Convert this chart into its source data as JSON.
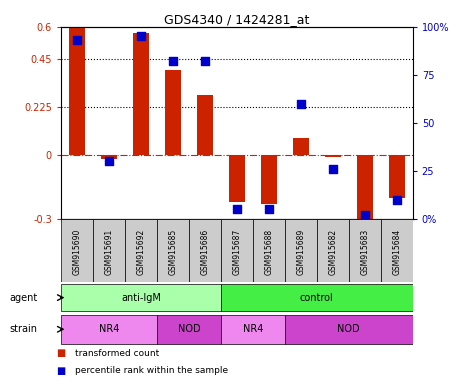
{
  "title": "GDS4340 / 1424281_at",
  "samples": [
    "GSM915690",
    "GSM915691",
    "GSM915692",
    "GSM915685",
    "GSM915686",
    "GSM915687",
    "GSM915688",
    "GSM915689",
    "GSM915682",
    "GSM915683",
    "GSM915684"
  ],
  "transformed_count": [
    0.6,
    -0.02,
    0.57,
    0.4,
    0.28,
    -0.22,
    -0.23,
    0.08,
    -0.01,
    -0.3,
    -0.2
  ],
  "percentile_rank": [
    93,
    30,
    95,
    82,
    82,
    5,
    5,
    60,
    26,
    2,
    10
  ],
  "bar_color": "#cc2200",
  "dot_color": "#0000cc",
  "ylim_left": [
    -0.3,
    0.6
  ],
  "ylim_right": [
    0,
    100
  ],
  "yticks_left": [
    -0.3,
    0,
    0.225,
    0.45,
    0.6
  ],
  "yticks_right": [
    0,
    25,
    50,
    75,
    100
  ],
  "ytick_labels_left": [
    "-0.3",
    "0",
    "0.225",
    "0.45",
    "0.6"
  ],
  "ytick_labels_right": [
    "0%",
    "25",
    "50",
    "75",
    "100%"
  ],
  "hlines": [
    0.225,
    0.45
  ],
  "zero_line_color": "#cc2200",
  "hline_color": "#000000",
  "agent_groups": [
    {
      "label": "anti-IgM",
      "start": 0,
      "end": 5,
      "color": "#aaffaa"
    },
    {
      "label": "control",
      "start": 5,
      "end": 11,
      "color": "#44ee44"
    }
  ],
  "strain_groups": [
    {
      "label": "NR4",
      "start": 0,
      "end": 3,
      "color": "#ee88ee"
    },
    {
      "label": "NOD",
      "start": 3,
      "end": 5,
      "color": "#cc44cc"
    },
    {
      "label": "NR4",
      "start": 5,
      "end": 7,
      "color": "#ee88ee"
    },
    {
      "label": "NOD",
      "start": 7,
      "end": 11,
      "color": "#cc44cc"
    }
  ],
  "legend_red_label": "transformed count",
  "legend_blue_label": "percentile rank within the sample",
  "bar_width": 0.5,
  "dot_size": 40,
  "agent_label": "agent",
  "strain_label": "strain",
  "xlim": [
    -0.5,
    10.5
  ],
  "tick_bg_color": "#cccccc"
}
